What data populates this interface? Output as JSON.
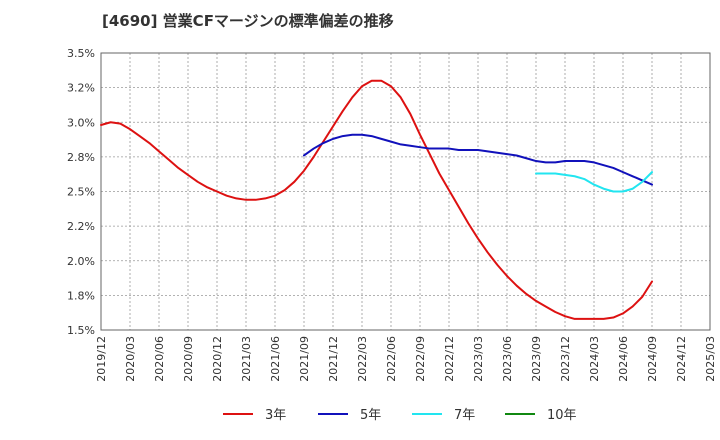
{
  "chart_data": {
    "type": "line",
    "title": "[4690]  営業CFマージンの標準偏差の推移",
    "xlabel": "",
    "ylabel": "",
    "ylim": [
      1.5,
      3.5
    ],
    "y_ticks": [
      "1.5%",
      "1.8%",
      "2.0%",
      "2.2%",
      "2.5%",
      "2.8%",
      "3.0%",
      "3.2%",
      "3.5%"
    ],
    "x_ticks": [
      "2019/12",
      "2020/03",
      "2020/06",
      "2020/09",
      "2020/12",
      "2021/03",
      "2021/06",
      "2021/09",
      "2021/12",
      "2022/03",
      "2022/06",
      "2022/09",
      "2022/12",
      "2023/03",
      "2023/06",
      "2023/09",
      "2023/12",
      "2024/03",
      "2024/06",
      "2024/09",
      "2024/12",
      "2025/03"
    ],
    "grid": true,
    "legend_position": "bottom",
    "series": [
      {
        "name": "3年",
        "color": "#dd1111",
        "points": [
          [
            "2019/12",
            2.98
          ],
          [
            "2020/01",
            3.0
          ],
          [
            "2020/02",
            2.99
          ],
          [
            "2020/03",
            2.95
          ],
          [
            "2020/04",
            2.9
          ],
          [
            "2020/05",
            2.85
          ],
          [
            "2020/06",
            2.79
          ],
          [
            "2020/07",
            2.73
          ],
          [
            "2020/08",
            2.67
          ],
          [
            "2020/09",
            2.62
          ],
          [
            "2020/10",
            2.57
          ],
          [
            "2020/11",
            2.53
          ],
          [
            "2020/12",
            2.5
          ],
          [
            "2021/01",
            2.47
          ],
          [
            "2021/02",
            2.45
          ],
          [
            "2021/03",
            2.44
          ],
          [
            "2021/04",
            2.44
          ],
          [
            "2021/05",
            2.45
          ],
          [
            "2021/06",
            2.47
          ],
          [
            "2021/07",
            2.51
          ],
          [
            "2021/08",
            2.57
          ],
          [
            "2021/09",
            2.65
          ],
          [
            "2021/10",
            2.75
          ],
          [
            "2021/11",
            2.86
          ],
          [
            "2021/12",
            2.97
          ],
          [
            "2022/01",
            3.08
          ],
          [
            "2022/02",
            3.18
          ],
          [
            "2022/03",
            3.26
          ],
          [
            "2022/04",
            3.3
          ],
          [
            "2022/05",
            3.3
          ],
          [
            "2022/06",
            3.26
          ],
          [
            "2022/07",
            3.18
          ],
          [
            "2022/08",
            3.06
          ],
          [
            "2022/09",
            2.91
          ],
          [
            "2022/10",
            2.77
          ],
          [
            "2022/11",
            2.63
          ],
          [
            "2022/12",
            2.51
          ],
          [
            "2023/01",
            2.39
          ],
          [
            "2023/02",
            2.27
          ],
          [
            "2023/03",
            2.16
          ],
          [
            "2023/04",
            2.06
          ],
          [
            "2023/05",
            1.97
          ],
          [
            "2023/06",
            1.89
          ],
          [
            "2023/07",
            1.82
          ],
          [
            "2023/08",
            1.76
          ],
          [
            "2023/09",
            1.71
          ],
          [
            "2023/10",
            1.67
          ],
          [
            "2023/11",
            1.63
          ],
          [
            "2023/12",
            1.6
          ],
          [
            "2024/01",
            1.58
          ],
          [
            "2024/02",
            1.58
          ],
          [
            "2024/03",
            1.58
          ],
          [
            "2024/04",
            1.58
          ],
          [
            "2024/05",
            1.59
          ],
          [
            "2024/06",
            1.62
          ],
          [
            "2024/07",
            1.67
          ],
          [
            "2024/08",
            1.74
          ],
          [
            "2024/09",
            1.85
          ]
        ]
      },
      {
        "name": "5年",
        "color": "#1111bb",
        "points": [
          [
            "2021/09",
            2.76
          ],
          [
            "2021/10",
            2.81
          ],
          [
            "2021/11",
            2.85
          ],
          [
            "2021/12",
            2.88
          ],
          [
            "2022/01",
            2.9
          ],
          [
            "2022/02",
            2.91
          ],
          [
            "2022/03",
            2.91
          ],
          [
            "2022/04",
            2.9
          ],
          [
            "2022/05",
            2.88
          ],
          [
            "2022/06",
            2.86
          ],
          [
            "2022/07",
            2.84
          ],
          [
            "2022/08",
            2.83
          ],
          [
            "2022/09",
            2.82
          ],
          [
            "2022/10",
            2.81
          ],
          [
            "2022/11",
            2.81
          ],
          [
            "2022/12",
            2.81
          ],
          [
            "2023/01",
            2.8
          ],
          [
            "2023/02",
            2.8
          ],
          [
            "2023/03",
            2.8
          ],
          [
            "2023/04",
            2.79
          ],
          [
            "2023/05",
            2.78
          ],
          [
            "2023/06",
            2.77
          ],
          [
            "2023/07",
            2.76
          ],
          [
            "2023/08",
            2.74
          ],
          [
            "2023/09",
            2.72
          ],
          [
            "2023/10",
            2.71
          ],
          [
            "2023/11",
            2.71
          ],
          [
            "2023/12",
            2.72
          ],
          [
            "2024/01",
            2.72
          ],
          [
            "2024/02",
            2.72
          ],
          [
            "2024/03",
            2.71
          ],
          [
            "2024/04",
            2.69
          ],
          [
            "2024/05",
            2.67
          ],
          [
            "2024/06",
            2.64
          ],
          [
            "2024/07",
            2.61
          ],
          [
            "2024/08",
            2.58
          ],
          [
            "2024/09",
            2.55
          ]
        ]
      },
      {
        "name": "7年",
        "color": "#22e5f0",
        "points": [
          [
            "2023/09",
            2.63
          ],
          [
            "2023/10",
            2.63
          ],
          [
            "2023/11",
            2.63
          ],
          [
            "2023/12",
            2.62
          ],
          [
            "2024/01",
            2.61
          ],
          [
            "2024/02",
            2.59
          ],
          [
            "2024/03",
            2.55
          ],
          [
            "2024/04",
            2.52
          ],
          [
            "2024/05",
            2.5
          ],
          [
            "2024/06",
            2.5
          ],
          [
            "2024/07",
            2.52
          ],
          [
            "2024/08",
            2.57
          ],
          [
            "2024/09",
            2.64
          ]
        ]
      },
      {
        "name": "10年",
        "color": "#118811",
        "points": []
      }
    ]
  }
}
